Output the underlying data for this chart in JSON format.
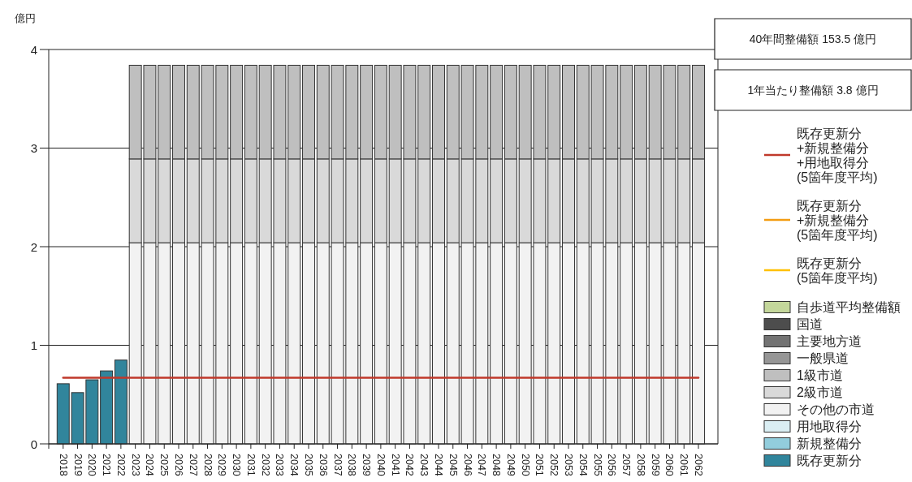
{
  "chart_data": {
    "type": "bar",
    "stacked": true,
    "ylabel": "億円",
    "ylim": [
      0,
      4
    ],
    "yticks": [
      0,
      1,
      2,
      3,
      4
    ],
    "grid": "y",
    "legend": "right",
    "annotations": [
      "40年間整備額 153.5 億円",
      "1年当たり整備額 3.8 億円"
    ],
    "categories": [
      "2018",
      "2019",
      "2020",
      "2021",
      "2022",
      "2023",
      "2024",
      "2025",
      "2026",
      "2027",
      "2028",
      "2029",
      "2030",
      "2031",
      "2032",
      "2033",
      "2034",
      "2035",
      "2036",
      "2037",
      "2038",
      "2039",
      "2040",
      "2041",
      "2042",
      "2043",
      "2044",
      "2045",
      "2046",
      "2047",
      "2048",
      "2049",
      "2050",
      "2051",
      "2052",
      "2053",
      "2054",
      "2055",
      "2056",
      "2057",
      "2058",
      "2059",
      "2060",
      "2061",
      "2062"
    ],
    "series": [
      {
        "name": "既存更新分",
        "color": "#31859c",
        "values": [
          0.61,
          0.52,
          0.65,
          0.74,
          0.85,
          null,
          null,
          null,
          null,
          null,
          null,
          null,
          null,
          null,
          null,
          null,
          null,
          null,
          null,
          null,
          null,
          null,
          null,
          null,
          null,
          null,
          null,
          null,
          null,
          null,
          null,
          null,
          null,
          null,
          null,
          null,
          null,
          null,
          null,
          null,
          null,
          null,
          null,
          null,
          null
        ]
      },
      {
        "name": "新規整備分",
        "color": "#92cddc",
        "values": [
          null,
          null,
          null,
          null,
          null,
          null,
          null,
          null,
          null,
          null,
          null,
          null,
          null,
          null,
          null,
          null,
          null,
          null,
          null,
          null,
          null,
          null,
          null,
          null,
          null,
          null,
          null,
          null,
          null,
          null,
          null,
          null,
          null,
          null,
          null,
          null,
          null,
          null,
          null,
          null,
          null,
          null,
          null,
          null,
          null
        ]
      },
      {
        "name": "用地取得分",
        "color": "#daeef3",
        "values": [
          null,
          null,
          null,
          null,
          null,
          null,
          null,
          null,
          null,
          null,
          null,
          null,
          null,
          null,
          null,
          null,
          null,
          null,
          null,
          null,
          null,
          null,
          null,
          null,
          null,
          null,
          null,
          null,
          null,
          null,
          null,
          null,
          null,
          null,
          null,
          null,
          null,
          null,
          null,
          null,
          null,
          null,
          null,
          null,
          null
        ]
      },
      {
        "name": "その他の市道",
        "color": "#f2f2f2",
        "values": [
          null,
          null,
          null,
          null,
          null,
          2.04,
          2.04,
          2.04,
          2.04,
          2.04,
          2.04,
          2.04,
          2.04,
          2.04,
          2.04,
          2.04,
          2.04,
          2.04,
          2.04,
          2.04,
          2.04,
          2.04,
          2.04,
          2.04,
          2.04,
          2.04,
          2.04,
          2.04,
          2.04,
          2.04,
          2.04,
          2.04,
          2.04,
          2.04,
          2.04,
          2.04,
          2.04,
          2.04,
          2.04,
          2.04,
          2.04,
          2.04,
          2.04,
          2.04,
          2.04
        ]
      },
      {
        "name": "2級市道",
        "color": "#d9d9d9",
        "values": [
          null,
          null,
          null,
          null,
          null,
          0.85,
          0.85,
          0.85,
          0.85,
          0.85,
          0.85,
          0.85,
          0.85,
          0.85,
          0.85,
          0.85,
          0.85,
          0.85,
          0.85,
          0.85,
          0.85,
          0.85,
          0.85,
          0.85,
          0.85,
          0.85,
          0.85,
          0.85,
          0.85,
          0.85,
          0.85,
          0.85,
          0.85,
          0.85,
          0.85,
          0.85,
          0.85,
          0.85,
          0.85,
          0.85,
          0.85,
          0.85,
          0.85,
          0.85,
          0.85
        ]
      },
      {
        "name": "1級市道",
        "color": "#bfbfbf",
        "values": [
          null,
          null,
          null,
          null,
          null,
          0.95,
          0.95,
          0.95,
          0.95,
          0.95,
          0.95,
          0.95,
          0.95,
          0.95,
          0.95,
          0.95,
          0.95,
          0.95,
          0.95,
          0.95,
          0.95,
          0.95,
          0.95,
          0.95,
          0.95,
          0.95,
          0.95,
          0.95,
          0.95,
          0.95,
          0.95,
          0.95,
          0.95,
          0.95,
          0.95,
          0.95,
          0.95,
          0.95,
          0.95,
          0.95,
          0.95,
          0.95,
          0.95,
          0.95,
          0.95
        ]
      },
      {
        "name": "一般県道",
        "color": "#969696",
        "values": [
          null,
          null,
          null,
          null,
          null,
          null,
          null,
          null,
          null,
          null,
          null,
          null,
          null,
          null,
          null,
          null,
          null,
          null,
          null,
          null,
          null,
          null,
          null,
          null,
          null,
          null,
          null,
          null,
          null,
          null,
          null,
          null,
          null,
          null,
          null,
          null,
          null,
          null,
          null,
          null,
          null,
          null,
          null,
          null,
          null
        ]
      },
      {
        "name": "主要地方道",
        "color": "#737373",
        "values": [
          null,
          null,
          null,
          null,
          null,
          null,
          null,
          null,
          null,
          null,
          null,
          null,
          null,
          null,
          null,
          null,
          null,
          null,
          null,
          null,
          null,
          null,
          null,
          null,
          null,
          null,
          null,
          null,
          null,
          null,
          null,
          null,
          null,
          null,
          null,
          null,
          null,
          null,
          null,
          null,
          null,
          null,
          null,
          null,
          null
        ]
      },
      {
        "name": "国道",
        "color": "#4d4d4d",
        "values": [
          null,
          null,
          null,
          null,
          null,
          null,
          null,
          null,
          null,
          null,
          null,
          null,
          null,
          null,
          null,
          null,
          null,
          null,
          null,
          null,
          null,
          null,
          null,
          null,
          null,
          null,
          null,
          null,
          null,
          null,
          null,
          null,
          null,
          null,
          null,
          null,
          null,
          null,
          null,
          null,
          null,
          null,
          null,
          null,
          null
        ]
      },
      {
        "name": "自歩道平均整備額",
        "color": "#c4d79b",
        "values": [
          null,
          null,
          null,
          null,
          null,
          null,
          null,
          null,
          null,
          null,
          null,
          null,
          null,
          null,
          null,
          null,
          null,
          null,
          null,
          null,
          null,
          null,
          null,
          null,
          null,
          null,
          null,
          null,
          null,
          null,
          null,
          null,
          null,
          null,
          null,
          null,
          null,
          null,
          null,
          null,
          null,
          null,
          null,
          null,
          null
        ]
      },
      {
        "name": "既存更新分(5箇年度平均)",
        "type": "line",
        "color": "#ffc000",
        "values": [
          null,
          null,
          null,
          null,
          null,
          null,
          null,
          null,
          null,
          null,
          null,
          null,
          null,
          null,
          null,
          null,
          null,
          null,
          null,
          null,
          null,
          null,
          null,
          null,
          null,
          null,
          null,
          null,
          null,
          null,
          null,
          null,
          null,
          null,
          null,
          null,
          null,
          null,
          null,
          null,
          null,
          null,
          null,
          null,
          null
        ]
      },
      {
        "name": "既存更新分+新規整備分(5箇年度平均)",
        "type": "line",
        "color": "#f39c12",
        "values": [
          null,
          null,
          null,
          null,
          null,
          null,
          null,
          null,
          null,
          null,
          null,
          null,
          null,
          null,
          null,
          null,
          null,
          null,
          null,
          null,
          null,
          null,
          null,
          null,
          null,
          null,
          null,
          null,
          null,
          null,
          null,
          null,
          null,
          null,
          null,
          null,
          null,
          null,
          null,
          null,
          null,
          null,
          null,
          null,
          null
        ]
      },
      {
        "name": "既存更新分+新規整備分+用地取得分(5箇年度平均)",
        "type": "line",
        "color": "#c0392b",
        "values": [
          0.67,
          0.67,
          0.67,
          0.67,
          0.67,
          0.67,
          0.67,
          0.67,
          0.67,
          0.67,
          0.67,
          0.67,
          0.67,
          0.67,
          0.67,
          0.67,
          0.67,
          0.67,
          0.67,
          0.67,
          0.67,
          0.67,
          0.67,
          0.67,
          0.67,
          0.67,
          0.67,
          0.67,
          0.67,
          0.67,
          0.67,
          0.67,
          0.67,
          0.67,
          0.67,
          0.67,
          0.67,
          0.67,
          0.67,
          0.67,
          0.67,
          0.67,
          0.67,
          0.67,
          0.67
        ]
      }
    ]
  }
}
